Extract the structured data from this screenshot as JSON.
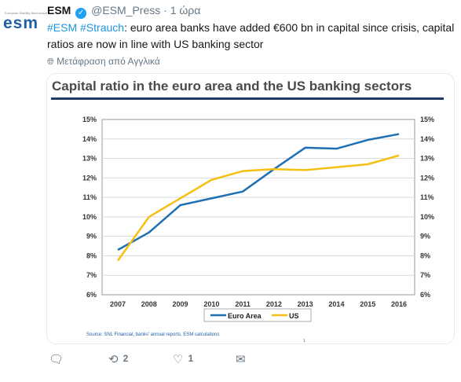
{
  "tweet": {
    "avatar_text": "esm",
    "avatar_tiny": "European Stability Mechanism",
    "name": "ESM",
    "handle": "@ESM_Press",
    "separator": "·",
    "time": "1 ώρα",
    "hashtag1": "#ESM",
    "hashtag2": "#Strauch",
    "text": ": euro area banks have added €600 bn in capital since crisis, capital ratios are now in line with US banking sector",
    "translate": "Μετάφραση από Αγγλικά",
    "reply_count": "",
    "retweet_count": "2",
    "like_count": "1"
  },
  "colors": {
    "euro": "#1f6fb5",
    "us": "#f5c013",
    "accent": "#1da1f2"
  },
  "icons": {
    "verified": "verified-badge-icon",
    "globe": "globe-icon",
    "reply": "reply-icon",
    "retweet": "retweet-icon",
    "like": "heart-icon",
    "message": "envelope-icon"
  },
  "chart_data": {
    "type": "line",
    "title": "Capital ratio in the euro area and the US banking sectors",
    "x": [
      "2007",
      "2008",
      "2009",
      "2010",
      "2011",
      "2012",
      "2013",
      "2014",
      "2015",
      "2016"
    ],
    "ylim": [
      6,
      15
    ],
    "yticks": [
      "6%",
      "7%",
      "8%",
      "9%",
      "10%",
      "11%",
      "12%",
      "13%",
      "14%",
      "15%"
    ],
    "grid": true,
    "legend": "bottom",
    "series": [
      {
        "name": "Euro Area",
        "color": "#1f6fb5",
        "values": [
          8.3,
          9.2,
          10.6,
          10.95,
          11.3,
          12.45,
          13.55,
          13.5,
          13.95,
          14.25
        ]
      },
      {
        "name": "US",
        "color": "#f5c013",
        "values": [
          7.75,
          10.0,
          10.95,
          11.9,
          12.35,
          12.45,
          12.4,
          12.55,
          12.7,
          13.15
        ]
      }
    ],
    "source": "Source: SNL Financial, banks' annual reports, ESM calculations",
    "page": "1"
  }
}
